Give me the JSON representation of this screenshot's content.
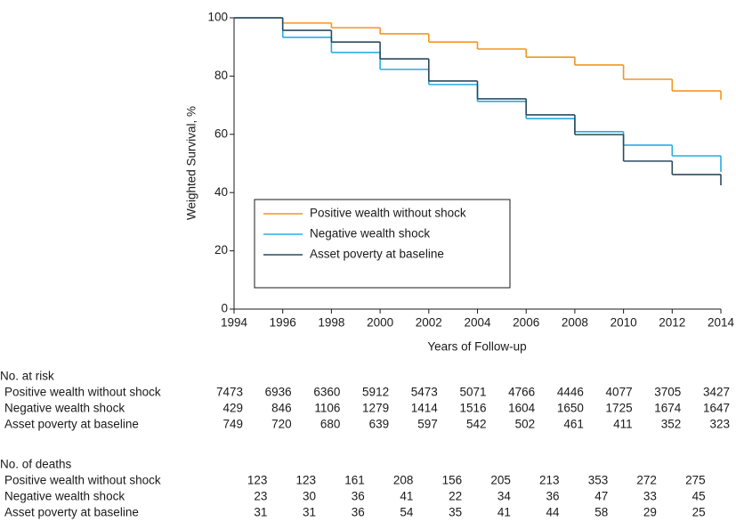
{
  "chart_data": {
    "type": "step",
    "y_label": "Weighted Survival, %",
    "x_label": "Years of Follow-up",
    "x": [
      1994,
      1996,
      1998,
      2000,
      2002,
      2004,
      2006,
      2008,
      2010,
      2012,
      2014
    ],
    "xlim": [
      1994,
      2014
    ],
    "xticks": [
      1994,
      1996,
      1998,
      2000,
      2002,
      2004,
      2006,
      2008,
      2010,
      2012,
      2014
    ],
    "ylim": [
      0,
      100
    ],
    "yticks": [
      0,
      20,
      40,
      60,
      80,
      100
    ],
    "grid": false,
    "legend": "lower left",
    "series": [
      {
        "name": "Positive wealth without shock",
        "color": "#f7941d",
        "values": [
          100,
          98.2,
          96.6,
          94.5,
          91.7,
          89.3,
          86.5,
          83.8,
          78.9,
          74.9,
          71.9
        ]
      },
      {
        "name": "Negative wealth shock",
        "color": "#29abe2",
        "values": [
          100,
          93.3,
          88.1,
          82.3,
          77.1,
          71.3,
          65.4,
          60.9,
          56.3,
          52.6,
          47.1
        ]
      },
      {
        "name": "Asset poverty at baseline",
        "color": "#2c4a5e",
        "values": [
          100,
          95.7,
          91.7,
          85.9,
          78.3,
          72.2,
          66.7,
          59.9,
          50.8,
          46.2,
          42.5
        ]
      }
    ],
    "tables": [
      {
        "title": "No. at risk",
        "rows": [
          {
            "label": "Positive wealth without shock",
            "values": [
              7473,
              6936,
              6360,
              5912,
              5473,
              5071,
              4766,
              4446,
              4077,
              3705,
              3427
            ]
          },
          {
            "label": "Negative wealth shock",
            "values": [
              429,
              846,
              1106,
              1279,
              1414,
              1516,
              1604,
              1650,
              1725,
              1674,
              1647
            ]
          },
          {
            "label": "Asset poverty at baseline",
            "values": [
              749,
              720,
              680,
              639,
              597,
              542,
              502,
              461,
              411,
              352,
              323
            ]
          }
        ]
      },
      {
        "title": "No. of deaths",
        "rows": [
          {
            "label": "Positive wealth without shock",
            "values": [
              123,
              123,
              161,
              208,
              156,
              205,
              213,
              353,
              272,
              275
            ]
          },
          {
            "label": "Negative wealth shock",
            "values": [
              23,
              30,
              36,
              41,
              22,
              34,
              36,
              47,
              33,
              45
            ]
          },
          {
            "label": "Asset poverty at baseline",
            "values": [
              31,
              31,
              36,
              54,
              35,
              41,
              44,
              58,
              29,
              25
            ]
          }
        ]
      }
    ]
  }
}
